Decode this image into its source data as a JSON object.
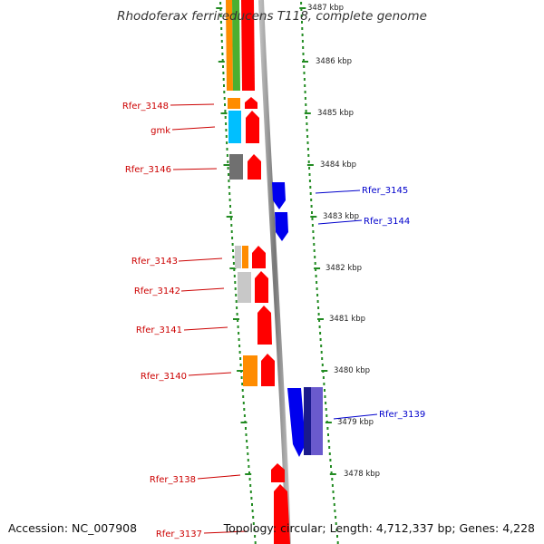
{
  "title": "Rhodoferax ferrireducens T118, complete genome",
  "footer": {
    "accession": "Accession: NC_007908",
    "topology": "Topology: circular; Length: 4,712,337 bp; Genes: 4,228"
  },
  "colors": {
    "forward_label": "#cc0000",
    "reverse_label": "#0000cc",
    "tick_green": "#228b22",
    "backbone": "#888888"
  },
  "kbp_ticks": [
    "3487 kbp",
    "3486 kbp",
    "3485 kbp",
    "3484 kbp",
    "3483 kbp",
    "3482 kbp",
    "3481 kbp",
    "3480 kbp",
    "3479 kbp",
    "3478 kbp"
  ],
  "gene_labels": {
    "left": [
      "Rfer_3148",
      "gmk",
      "Rfer_3146",
      "Rfer_3143",
      "Rfer_3142",
      "Rfer_3141",
      "Rfer_3140",
      "Rfer_3138",
      "Rfer_3137"
    ],
    "right": [
      "Rfer_3145",
      "Rfer_3144",
      "Rfer_3139"
    ]
  },
  "gene_colors": {
    "forward_gene": "#ff0000",
    "reverse_gene": "#0000ee",
    "cog_orange": "#ff8c00",
    "cog_cyan": "#00bfff",
    "cog_gray": "#707070",
    "cog_lightgray": "#c8c8c8",
    "cog_green": "#4caf30",
    "cog_navy": "#1a1a8c",
    "cog_slate": "#6a5acd"
  }
}
